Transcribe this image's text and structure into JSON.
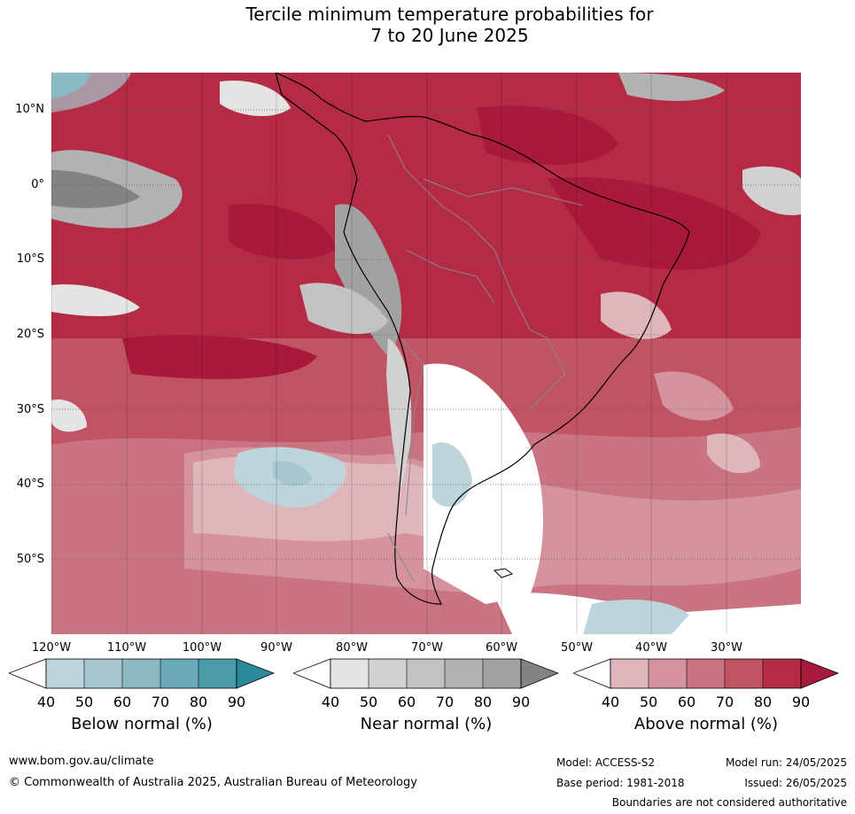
{
  "title": {
    "line1": "Tercile minimum temperature probabilities for",
    "line2": "7 to 20 June 2025"
  },
  "map": {
    "lat_labels": [
      "10°N",
      "0°",
      "10°S",
      "20°S",
      "30°S",
      "40°S",
      "50°S"
    ],
    "lon_labels": [
      "120°W",
      "110°W",
      "100°W",
      "90°W",
      "80°W",
      "70°W",
      "60°W",
      "50°W",
      "40°W",
      "30°W"
    ],
    "colors": {
      "above": [
        "#e0b6bd",
        "#d5939d",
        "#c97480",
        "#c05465",
        "#b52b45",
        "#a8193a"
      ],
      "near": [
        "#e4e4e4",
        "#d1d1d1",
        "#c2c2c2",
        "#b2b2b2",
        "#a2a2a2",
        "#838383"
      ],
      "below": [
        "#bed4db",
        "#a6c7ce",
        "#8db9c3",
        "#6aa9b7",
        "#4a9aaa",
        "#2a8a9c"
      ]
    }
  },
  "legends": [
    {
      "title": "Below normal (%)",
      "ticks": [
        "40",
        "50",
        "60",
        "70",
        "80",
        "90"
      ],
      "colors": [
        "#bed4db",
        "#a6c7ce",
        "#8db9c3",
        "#6aa9b7",
        "#4a9aaa",
        "#2a8a9c"
      ]
    },
    {
      "title": "Near normal (%)",
      "ticks": [
        "40",
        "50",
        "60",
        "70",
        "80",
        "90"
      ],
      "colors": [
        "#e4e4e4",
        "#d1d1d1",
        "#c2c2c2",
        "#b2b2b2",
        "#a2a2a2",
        "#838383"
      ]
    },
    {
      "title": "Above normal (%)",
      "ticks": [
        "40",
        "50",
        "60",
        "70",
        "80",
        "90"
      ],
      "colors": [
        "#e0b6bd",
        "#d5939d",
        "#c97480",
        "#c05465",
        "#b52b45",
        "#a8193a"
      ]
    }
  ],
  "footer": {
    "website": "www.bom.gov.au/climate",
    "copyright": "© Commonwealth of Australia 2025, Australian Bureau of Meteorology",
    "model": "Model: ACCESS-S2",
    "base_period": "Base period: 1981-2018",
    "model_run": "Model run: 24/05/2025",
    "issued": "Issued: 26/05/2025",
    "disclaimer": "Boundaries are not considered authoritative"
  }
}
